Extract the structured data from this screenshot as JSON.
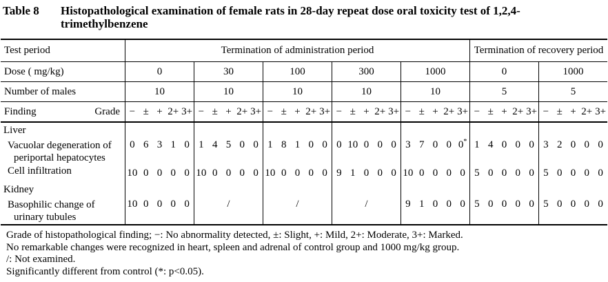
{
  "title": {
    "label": "Table 8",
    "caption_lines": [
      "Histopathological examination of female rats in 28-day repeat dose oral toxicity test of 1,2,4-",
      "trimethylbenzene"
    ]
  },
  "table": {
    "test_period_label": "Test period",
    "admin_period_header": "Termination of administration period",
    "recovery_period_header": "Termination of recovery period",
    "dose_label": "Dose ( mg/kg)",
    "doses": [
      "0",
      "30",
      "100",
      "300",
      "1000",
      "0",
      "1000"
    ],
    "n_label": "Number of males",
    "n_values": [
      "10",
      "10",
      "10",
      "10",
      "10",
      "5",
      "5"
    ],
    "finding_label": "Finding",
    "grade_label": "Grade",
    "grade_symbols": [
      "−",
      "±",
      "+",
      "2+",
      "3+"
    ],
    "not_examined_symbol": "/",
    "sections": [
      {
        "name": "Liver",
        "findings": [
          {
            "name_lines": [
              "Vacuolar degeneration of",
              "periportal hepatocytes"
            ],
            "counts": [
              [
                "0",
                "6",
                "3",
                "1",
                "0"
              ],
              [
                "1",
                "4",
                "5",
                "0",
                "0"
              ],
              [
                "1",
                "8",
                "1",
                "0",
                "0"
              ],
              [
                "0",
                "10",
                "0",
                "0",
                "0"
              ],
              [
                "3",
                "7",
                "0",
                "0",
                "0*"
              ],
              [
                "1",
                "4",
                "0",
                "0",
                "0"
              ],
              [
                "3",
                "2",
                "0",
                "0",
                "0"
              ]
            ]
          },
          {
            "name_lines": [
              "Cell infiltration"
            ],
            "counts": [
              [
                "10",
                "0",
                "0",
                "0",
                "0"
              ],
              [
                "10",
                "0",
                "0",
                "0",
                "0"
              ],
              [
                "10",
                "0",
                "0",
                "0",
                "0"
              ],
              [
                "9",
                "1",
                "0",
                "0",
                "0"
              ],
              [
                "10",
                "0",
                "0",
                "0",
                "0"
              ],
              [
                "5",
                "0",
                "0",
                "0",
                "0"
              ],
              [
                "5",
                "0",
                "0",
                "0",
                "0"
              ]
            ]
          }
        ]
      },
      {
        "name": "Kidney",
        "findings": [
          {
            "name_lines": [
              "Basophilic change of",
              "urinary tubules"
            ],
            "counts": [
              [
                "10",
                "0",
                "0",
                "0",
                "0"
              ],
              "/",
              "/",
              "/",
              [
                "9",
                "1",
                "0",
                "0",
                "0"
              ],
              [
                "5",
                "0",
                "0",
                "0",
                "0"
              ],
              [
                "5",
                "0",
                "0",
                "0",
                "0"
              ]
            ]
          }
        ]
      }
    ]
  },
  "footnotes": [
    "Grade of histopathological finding; −: No abnormality detected, ±: Slight, +: Mild, 2+: Moderate, 3+: Marked.",
    "No remarkable changes were recognized in heart, spleen and adrenal of control group and 1000 mg/kg group.",
    "/: Not examined.",
    "Significantly different from control (*: p<0.05)."
  ]
}
